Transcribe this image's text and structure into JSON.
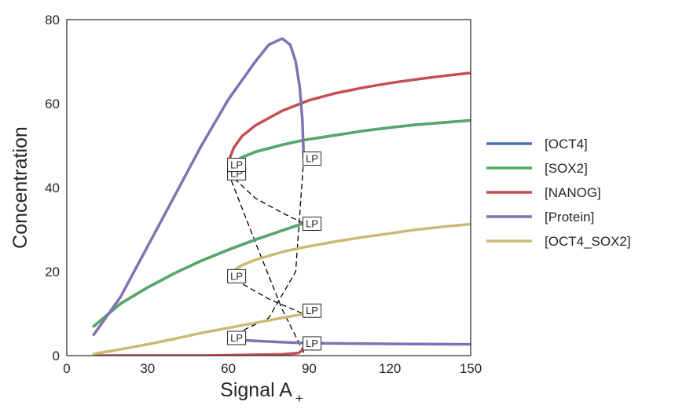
{
  "chart_data": {
    "type": "line",
    "title": "",
    "xlabel": "Signal A",
    "xlabel_subscript": "+",
    "ylabel": "Concentration",
    "xlim": [
      0,
      150
    ],
    "ylim": [
      0,
      80
    ],
    "xticks": [
      0,
      30,
      60,
      90,
      120,
      150
    ],
    "yticks": [
      0,
      20,
      40,
      60,
      80
    ],
    "grid": false,
    "legend_position": "right",
    "series": [
      {
        "name": "[OCT4]",
        "color": "#4c72b0",
        "style": "solid",
        "x": [
          10,
          20,
          30,
          40,
          50,
          60,
          70,
          80,
          88
        ],
        "y": [
          7,
          12.4,
          16.2,
          19.6,
          22.6,
          25.2,
          27.6,
          29.8,
          31.5
        ]
      },
      {
        "name": "[OCT4]",
        "color": "#4c72b0",
        "style": "solid",
        "x": [
          60,
          61,
          65,
          70,
          80,
          88,
          100,
          110,
          120,
          130,
          140,
          150
        ],
        "y": [
          43.5,
          45.5,
          47.2,
          48.5,
          50.2,
          51.3,
          52.5,
          53.5,
          54.3,
          55,
          55.5,
          56
        ]
      },
      {
        "name": "[SOX2]",
        "color": "#55a868",
        "style": "solid",
        "x": [
          10,
          20,
          30,
          40,
          50,
          60,
          70,
          80,
          88
        ],
        "y": [
          7,
          12.4,
          16.2,
          19.6,
          22.6,
          25.2,
          27.6,
          29.8,
          31.5
        ]
      },
      {
        "name": "[SOX2]",
        "color": "#55a868",
        "style": "solid",
        "x": [
          60,
          61,
          65,
          70,
          80,
          88,
          100,
          110,
          120,
          130,
          140,
          150
        ],
        "y": [
          43.5,
          45.5,
          47.2,
          48.5,
          50.2,
          51.3,
          52.5,
          53.5,
          54.3,
          55,
          55.5,
          56
        ]
      },
      {
        "name": "[NANOG]",
        "color": "#c44e52",
        "style": "solid",
        "x": [
          10,
          30,
          50,
          60,
          70,
          80,
          86,
          88
        ],
        "y": [
          0,
          0,
          0,
          0.1,
          0.2,
          0.3,
          0.6,
          1.5
        ]
      },
      {
        "name": "[NANOG]",
        "color": "#c44e52",
        "style": "solid",
        "x": [
          60,
          60.5,
          62,
          65,
          70,
          80,
          90,
          100,
          110,
          120,
          130,
          140,
          150
        ],
        "y": [
          43.5,
          47,
          49.5,
          52.2,
          54.8,
          58.3,
          60.8,
          62.5,
          63.8,
          64.9,
          65.8,
          66.6,
          67.3
        ]
      },
      {
        "name": "[Protein]",
        "color": "#8172b2",
        "style": "solid",
        "x": [
          10,
          20,
          30,
          40,
          50,
          60,
          70,
          75,
          80,
          83,
          85,
          86.5,
          87.5,
          88
        ],
        "y": [
          5,
          14,
          26,
          38,
          50,
          61,
          70,
          74,
          75.5,
          74,
          70,
          64,
          56,
          47
        ]
      },
      {
        "name": "[Protein]",
        "color": "#8172b2",
        "style": "solid",
        "x": [
          60,
          65,
          70,
          80,
          88,
          100,
          120,
          150
        ],
        "y": [
          4.3,
          3.7,
          3.5,
          3.2,
          3.0,
          2.9,
          2.8,
          2.7
        ]
      },
      {
        "name": "[OCT4_SOX2]",
        "color": "#ccb974",
        "style": "solid",
        "x": [
          10,
          20,
          30,
          40,
          50,
          60,
          70,
          80,
          88
        ],
        "y": [
          0.4,
          1.5,
          2.7,
          4.0,
          5.4,
          6.6,
          7.8,
          9.0,
          9.9
        ]
      },
      {
        "name": "[OCT4_SOX2]",
        "color": "#ccb974",
        "style": "solid",
        "x": [
          60,
          62,
          65,
          70,
          80,
          88,
          100,
          110,
          120,
          130,
          140,
          150
        ],
        "y": [
          19,
          20.3,
          21.5,
          22.8,
          24.7,
          25.8,
          27.2,
          28.2,
          29.1,
          30,
          30.7,
          31.3
        ]
      },
      {
        "name": "",
        "color": "#000000",
        "style": "dashed",
        "x": [
          60,
          70,
          80,
          88
        ],
        "y": [
          43.5,
          37.5,
          34,
          31.5
        ]
      },
      {
        "name": "",
        "color": "#000000",
        "style": "dashed",
        "x": [
          60,
          70,
          80,
          88
        ],
        "y": [
          43.5,
          27,
          11,
          0.8
        ]
      },
      {
        "name": "",
        "color": "#000000",
        "style": "dashed",
        "x": [
          60,
          75,
          88
        ],
        "y": [
          19,
          13.5,
          9.9
        ]
      },
      {
        "name": "",
        "color": "#000000",
        "style": "dashed",
        "x": [
          60,
          75,
          85,
          88
        ],
        "y": [
          4.3,
          9,
          20,
          47
        ]
      }
    ],
    "legend": [
      "[OCT4]",
      "[SOX2]",
      "[NANOG]",
      "[Protein]",
      "[OCT4_SOX2]"
    ],
    "legend_colors": [
      "#4c72b0",
      "#55a868",
      "#c44e52",
      "#8172b2",
      "#ccb974"
    ],
    "lp_label": "LP",
    "lp_points": [
      {
        "x": 60,
        "y": 43.5
      },
      {
        "x": 60,
        "y": 45.5
      },
      {
        "x": 88,
        "y": 47
      },
      {
        "x": 88,
        "y": 31.5
      },
      {
        "x": 60,
        "y": 19
      },
      {
        "x": 88,
        "y": 10.8
      },
      {
        "x": 60,
        "y": 4.3
      },
      {
        "x": 88,
        "y": 3.0
      }
    ]
  }
}
